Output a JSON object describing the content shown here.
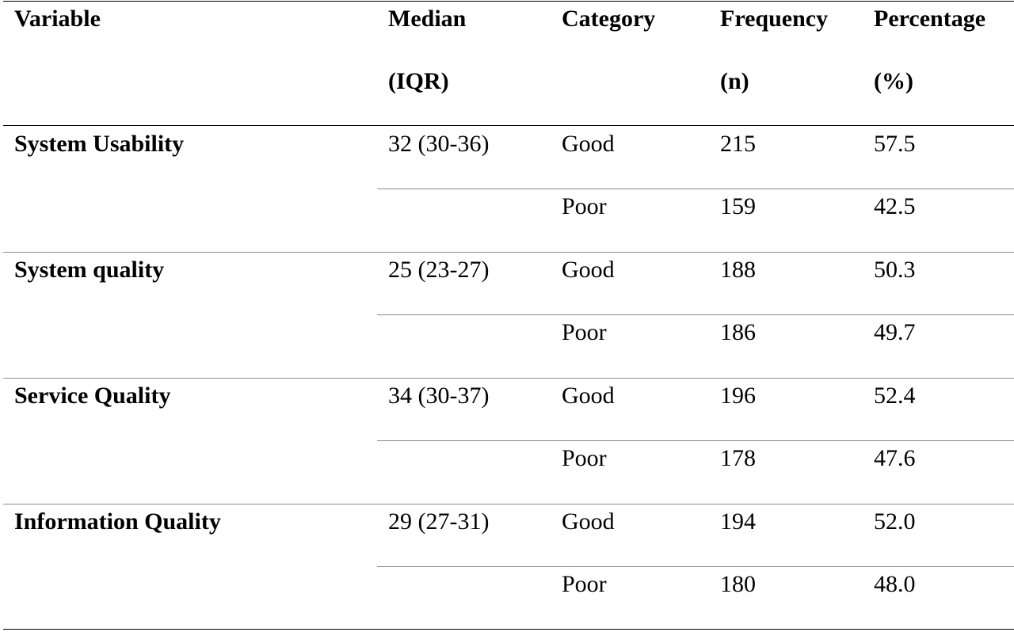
{
  "header": {
    "variable": "Variable",
    "median_line1": "Median",
    "median_line2": "(IQR)",
    "category": "Category",
    "frequency_line1": "Frequency",
    "frequency_line2": "(n)",
    "percentage_line1": "Percentage",
    "percentage_line2": "(%)"
  },
  "rows": [
    {
      "variable": "System Usability",
      "median": "32 (30-36)",
      "good": {
        "category": "Good",
        "frequency": "215",
        "percentage": "57.5"
      },
      "poor": {
        "category": "Poor",
        "frequency": "159",
        "percentage": "42.5"
      }
    },
    {
      "variable": "System quality",
      "median": "25 (23-27)",
      "good": {
        "category": "Good",
        "frequency": "188",
        "percentage": "50.3"
      },
      "poor": {
        "category": "Poor",
        "frequency": "186",
        "percentage": "49.7"
      }
    },
    {
      "variable": "Service Quality",
      "median": "34 (30-37)",
      "good": {
        "category": "Good",
        "frequency": "196",
        "percentage": "52.4"
      },
      "poor": {
        "category": "Poor",
        "frequency": "178",
        "percentage": "47.6"
      }
    },
    {
      "variable": "Information Quality",
      "median": "29 (27-31)",
      "good": {
        "category": "Good",
        "frequency": "194",
        "percentage": "52.0"
      },
      "poor": {
        "category": "Poor",
        "frequency": "180",
        "percentage": "48.0"
      }
    }
  ]
}
